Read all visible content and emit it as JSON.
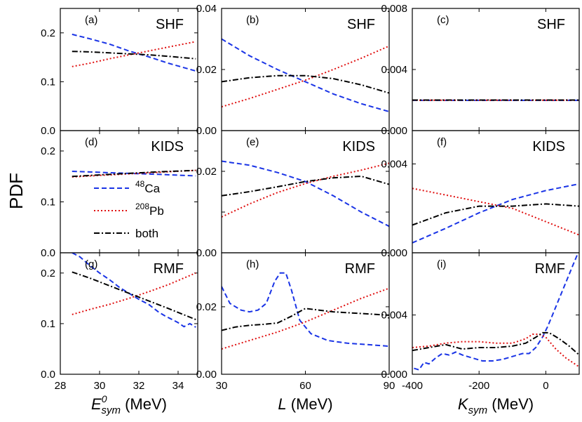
{
  "chart_data": {
    "type": "line",
    "ylabel": "PDF",
    "legend": {
      "entries": [
        {
          "label_pre": "",
          "label_sup": "48",
          "label_main": "Ca",
          "series": "48Ca",
          "color": "#1a34e6",
          "style": "dashed"
        },
        {
          "label_pre": "",
          "label_sup": "208",
          "label_main": "Pb",
          "series": "208Pb",
          "color": "#e01010",
          "style": "dotted"
        },
        {
          "label_pre": "both",
          "label_sup": "",
          "label_main": "",
          "series": "both",
          "color": "#000000",
          "style": "dashdot"
        }
      ],
      "location": "panel (d), lower-left"
    },
    "columns": [
      {
        "xlabel_main": "E",
        "xlabel_sup": "0",
        "xlabel_sub": "sym",
        "xlabel_unit": " (MeV)",
        "xlim": [
          28,
          35
        ],
        "xticks": [
          28,
          30,
          32,
          34
        ],
        "xtick_labels": [
          "28",
          "30",
          "32",
          "34"
        ]
      },
      {
        "xlabel_main": "L",
        "xlabel_sup": "",
        "xlabel_sub": "",
        "xlabel_unit": " (MeV)",
        "xlim": [
          30,
          90
        ],
        "xticks": [
          30,
          60,
          90
        ],
        "xtick_labels": [
          "30",
          "60",
          "90"
        ]
      },
      {
        "xlabel_main": "K",
        "xlabel_sup": "",
        "xlabel_sub": "sym",
        "xlabel_unit": " (MeV)",
        "xlim": [
          -400,
          100
        ],
        "xticks": [
          -400,
          -200,
          0
        ],
        "xtick_labels": [
          "-400",
          "-200",
          "0"
        ]
      }
    ],
    "rows": [
      {
        "model": "SHF",
        "panels": [
          {
            "label": "(a)",
            "ylim": [
              0,
              0.25
            ],
            "yticks": [
              0,
              0.1,
              0.2
            ],
            "ytick_labels": [
              "0.0",
              "0.1",
              "0.2"
            ],
            "series": {
              "48Ca": {
                "x": [
                  28.6,
                  29.5,
                  30.5,
                  31.5,
                  32.5,
                  33.5,
                  34.9
                ],
                "y": [
                  0.197,
                  0.188,
                  0.177,
                  0.163,
                  0.151,
                  0.138,
                  0.122
                ]
              },
              "208Pb": {
                "x": [
                  28.6,
                  29.5,
                  30.5,
                  31.5,
                  32.5,
                  33.5,
                  34.9
                ],
                "y": [
                  0.131,
                  0.138,
                  0.147,
                  0.155,
                  0.163,
                  0.171,
                  0.182
                ]
              },
              "both": {
                "x": [
                  28.6,
                  29.5,
                  30.5,
                  31.5,
                  32.5,
                  33.5,
                  34.9
                ],
                "y": [
                  0.162,
                  0.161,
                  0.159,
                  0.157,
                  0.155,
                  0.152,
                  0.147
                ]
              }
            }
          },
          {
            "label": "(b)",
            "ylim": [
              0,
              0.04
            ],
            "yticks": [
              0,
              0.02,
              0.04
            ],
            "ytick_labels": [
              "0.00",
              "0.02",
              "0.04"
            ],
            "series": {
              "48Ca": {
                "x": [
                  30,
                  40,
                  50,
                  60,
                  70,
                  80,
                  90
                ],
                "y": [
                  0.03,
                  0.0245,
                  0.02,
                  0.016,
                  0.012,
                  0.0088,
                  0.0062
                ]
              },
              "208Pb": {
                "x": [
                  30,
                  40,
                  50,
                  60,
                  70,
                  80,
                  90
                ],
                "y": [
                  0.0078,
                  0.0105,
                  0.0135,
                  0.0165,
                  0.02,
                  0.0237,
                  0.0277
                ]
              },
              "both": {
                "x": [
                  30,
                  40,
                  50,
                  60,
                  70,
                  80,
                  90
                ],
                "y": [
                  0.016,
                  0.0173,
                  0.018,
                  0.018,
                  0.017,
                  0.015,
                  0.0123
                ]
              }
            }
          },
          {
            "label": "(c)",
            "ylim": [
              0,
              0.008
            ],
            "yticks": [
              0,
              0.004,
              0.008
            ],
            "ytick_labels": [
              "0.000",
              "0.004",
              "0.008"
            ],
            "series": {
              "48Ca": {
                "x": [
                  -400,
                  -300,
                  -200,
                  -100,
                  0,
                  100
                ],
                "y": [
                  0.00198,
                  0.00198,
                  0.00198,
                  0.00198,
                  0.00198,
                  0.00198
                ]
              },
              "208Pb": {
                "x": [
                  -400,
                  -300,
                  -200,
                  -100,
                  0,
                  100
                ],
                "y": [
                  0.00199,
                  0.00199,
                  0.00199,
                  0.00199,
                  0.00199,
                  0.00199
                ]
              },
              "both": {
                "x": [
                  -400,
                  -300,
                  -200,
                  -100,
                  0,
                  100
                ],
                "y": [
                  0.002,
                  0.002,
                  0.002,
                  0.002,
                  0.002,
                  0.002
                ]
              }
            }
          }
        ]
      },
      {
        "model": "KIDS",
        "panels": [
          {
            "label": "(d)",
            "ylim": [
              0,
              0.24
            ],
            "yticks": [
              0,
              0.1,
              0.2
            ],
            "ytick_labels": [
              "0.0",
              "0.1",
              "0.2"
            ],
            "series": {
              "48Ca": {
                "x": [
                  28.6,
                  30,
                  31.5,
                  33,
                  34.9
                ],
                "y": [
                  0.16,
                  0.158,
                  0.156,
                  0.154,
                  0.151
                ]
              },
              "208Pb": {
                "x": [
                  28.6,
                  30,
                  31.5,
                  33,
                  34.9
                ],
                "y": [
                  0.149,
                  0.152,
                  0.155,
                  0.158,
                  0.162
                ]
              },
              "both": {
                "x": [
                  28.6,
                  30,
                  31.5,
                  33,
                  34.9
                ],
                "y": [
                  0.15,
                  0.153,
                  0.156,
                  0.159,
                  0.162
                ]
              }
            }
          },
          {
            "label": "(e)",
            "ylim": [
              0,
              0.03
            ],
            "yticks": [
              0,
              0.01,
              0.02
            ],
            "ytick_labels": [
              "0.00",
              "",
              "0.02"
            ],
            "series": {
              "48Ca": {
                "x": [
                  30,
                  40,
                  50,
                  60,
                  70,
                  80,
                  90
                ],
                "y": [
                  0.0225,
                  0.0215,
                  0.0197,
                  0.0175,
                  0.014,
                  0.01,
                  0.0065
                ]
              },
              "208Pb": {
                "x": [
                  30,
                  40,
                  50,
                  60,
                  70,
                  80,
                  90
                ],
                "y": [
                  0.0088,
                  0.012,
                  0.0148,
                  0.017,
                  0.0188,
                  0.0203,
                  0.022
                ]
              },
              "both": {
                "x": [
                  30,
                  40,
                  50,
                  60,
                  70,
                  80,
                  90
                ],
                "y": [
                  0.014,
                  0.015,
                  0.0162,
                  0.0175,
                  0.0184,
                  0.0188,
                  0.0168
                ]
              }
            }
          },
          {
            "label": "(f)",
            "ylim": [
              0,
              0.0055
            ],
            "yticks": [
              0,
              0.004
            ],
            "ytick_labels": [
              "0.000",
              "0.004"
            ],
            "series": {
              "48Ca": {
                "x": [
                  -400,
                  -300,
                  -200,
                  -100,
                  0,
                  100
                ],
                "y": [
                  0.00045,
                  0.0011,
                  0.0018,
                  0.0024,
                  0.0028,
                  0.0031
                ]
              },
              "208Pb": {
                "x": [
                  -400,
                  -300,
                  -200,
                  -100,
                  0,
                  100
                ],
                "y": [
                  0.0029,
                  0.0026,
                  0.0023,
                  0.002,
                  0.0014,
                  0.0008
                ]
              },
              "both": {
                "x": [
                  -400,
                  -300,
                  -200,
                  -100,
                  0,
                  100
                ],
                "y": [
                  0.00125,
                  0.0018,
                  0.0021,
                  0.0021,
                  0.0022,
                  0.0021
                ]
              }
            }
          }
        ]
      },
      {
        "model": "RMF",
        "panels": [
          {
            "label": "(g)",
            "ylim": [
              0,
              0.24
            ],
            "yticks": [
              0,
              0.1,
              0.2
            ],
            "ytick_labels": [
              "0.0",
              "0.1",
              "0.2"
            ],
            "series": {
              "48Ca": {
                "x": [
                  28.6,
                  29.0,
                  29.5,
                  30.0,
                  30.5,
                  31.0,
                  31.5,
                  32.0,
                  32.5,
                  33.0,
                  33.3,
                  33.6,
                  34.0,
                  34.3,
                  34.6,
                  34.9
                ],
                "y": [
                  0.24,
                  0.232,
                  0.215,
                  0.2,
                  0.187,
                  0.172,
                  0.16,
                  0.148,
                  0.138,
                  0.123,
                  0.116,
                  0.11,
                  0.102,
                  0.094,
                  0.1,
                  0.093
                ]
              },
              "208Pb": {
                "x": [
                  28.6,
                  29.5,
                  30.5,
                  31.5,
                  32.5,
                  33.5,
                  34.9
                ],
                "y": [
                  0.118,
                  0.128,
                  0.138,
                  0.15,
                  0.163,
                  0.177,
                  0.2
                ]
              },
              "both": {
                "x": [
                  28.6,
                  29.5,
                  30.5,
                  31.5,
                  32.5,
                  33.5,
                  34.9
                ],
                "y": [
                  0.202,
                  0.19,
                  0.175,
                  0.16,
                  0.145,
                  0.13,
                  0.108
                ]
              }
            }
          },
          {
            "label": "(h)",
            "ylim": [
              0,
              0.036
            ],
            "yticks": [
              0,
              0.02
            ],
            "ytick_labels": [
              "0.00",
              "0.02"
            ],
            "series": {
              "48Ca": {
                "x": [
                  30,
                  33,
                  37,
                  40,
                  43,
                  46,
                  49,
                  51,
                  53,
                  55,
                  58,
                  62,
                  68,
                  75,
                  82,
                  90
                ],
                "y": [
                  0.026,
                  0.021,
                  0.019,
                  0.0185,
                  0.019,
                  0.021,
                  0.0275,
                  0.03,
                  0.03,
                  0.025,
                  0.016,
                  0.012,
                  0.01,
                  0.0092,
                  0.0088,
                  0.0083
                ]
              },
              "208Pb": {
                "x": [
                  30,
                  40,
                  50,
                  60,
                  70,
                  80,
                  90
                ],
                "y": [
                  0.0075,
                  0.01,
                  0.0125,
                  0.0155,
                  0.019,
                  0.0225,
                  0.0255
                ]
              },
              "both": {
                "x": [
                  30,
                  35,
                  40,
                  45,
                  50,
                  55,
                  60,
                  65,
                  70,
                  80,
                  90
                ],
                "y": [
                  0.013,
                  0.014,
                  0.0145,
                  0.0148,
                  0.0152,
                  0.0172,
                  0.0195,
                  0.019,
                  0.0185,
                  0.018,
                  0.0175
                ]
              }
            }
          },
          {
            "label": "(i)",
            "ylim": [
              0,
              0.0082
            ],
            "yticks": [
              0,
              0.004
            ],
            "ytick_labels": [
              "0.000",
              "0.004"
            ],
            "series": {
              "48Ca": {
                "x": [
                  -395,
                  -380,
                  -365,
                  -350,
                  -330,
                  -310,
                  -290,
                  -270,
                  -250,
                  -220,
                  -190,
                  -160,
                  -130,
                  -100,
                  -70,
                  -50,
                  -30,
                  -10,
                  5,
                  20,
                  40,
                  60,
                  80,
                  95
                ],
                "y": [
                  0.0004,
                  0.0003,
                  0.0008,
                  0.0007,
                  0.0011,
                  0.0014,
                  0.0013,
                  0.0015,
                  0.0013,
                  0.0011,
                  0.0009,
                  0.0009,
                  0.001,
                  0.0012,
                  0.0014,
                  0.0014,
                  0.0018,
                  0.0025,
                  0.0032,
                  0.004,
                  0.0051,
                  0.0062,
                  0.0073,
                  0.0081
                ]
              },
              "208Pb": {
                "x": [
                  -400,
                  -350,
                  -300,
                  -250,
                  -200,
                  -150,
                  -100,
                  -60,
                  -40,
                  -20,
                  0,
                  30,
                  60,
                  100
                ],
                "y": [
                  0.0018,
                  0.0019,
                  0.0021,
                  0.0022,
                  0.0022,
                  0.0021,
                  0.0021,
                  0.0024,
                  0.0027,
                  0.0027,
                  0.0025,
                  0.0017,
                  0.0011,
                  0.0005
                ]
              },
              "both": {
                "x": [
                  -400,
                  -350,
                  -300,
                  -250,
                  -200,
                  -150,
                  -100,
                  -60,
                  -30,
                  -10,
                  10,
                  40,
                  70,
                  100
                ],
                "y": [
                  0.0016,
                  0.0018,
                  0.002,
                  0.0017,
                  0.0018,
                  0.0018,
                  0.0019,
                  0.0021,
                  0.0025,
                  0.0028,
                  0.0028,
                  0.0024,
                  0.0019,
                  0.0013
                ]
              }
            }
          }
        ]
      }
    ]
  }
}
